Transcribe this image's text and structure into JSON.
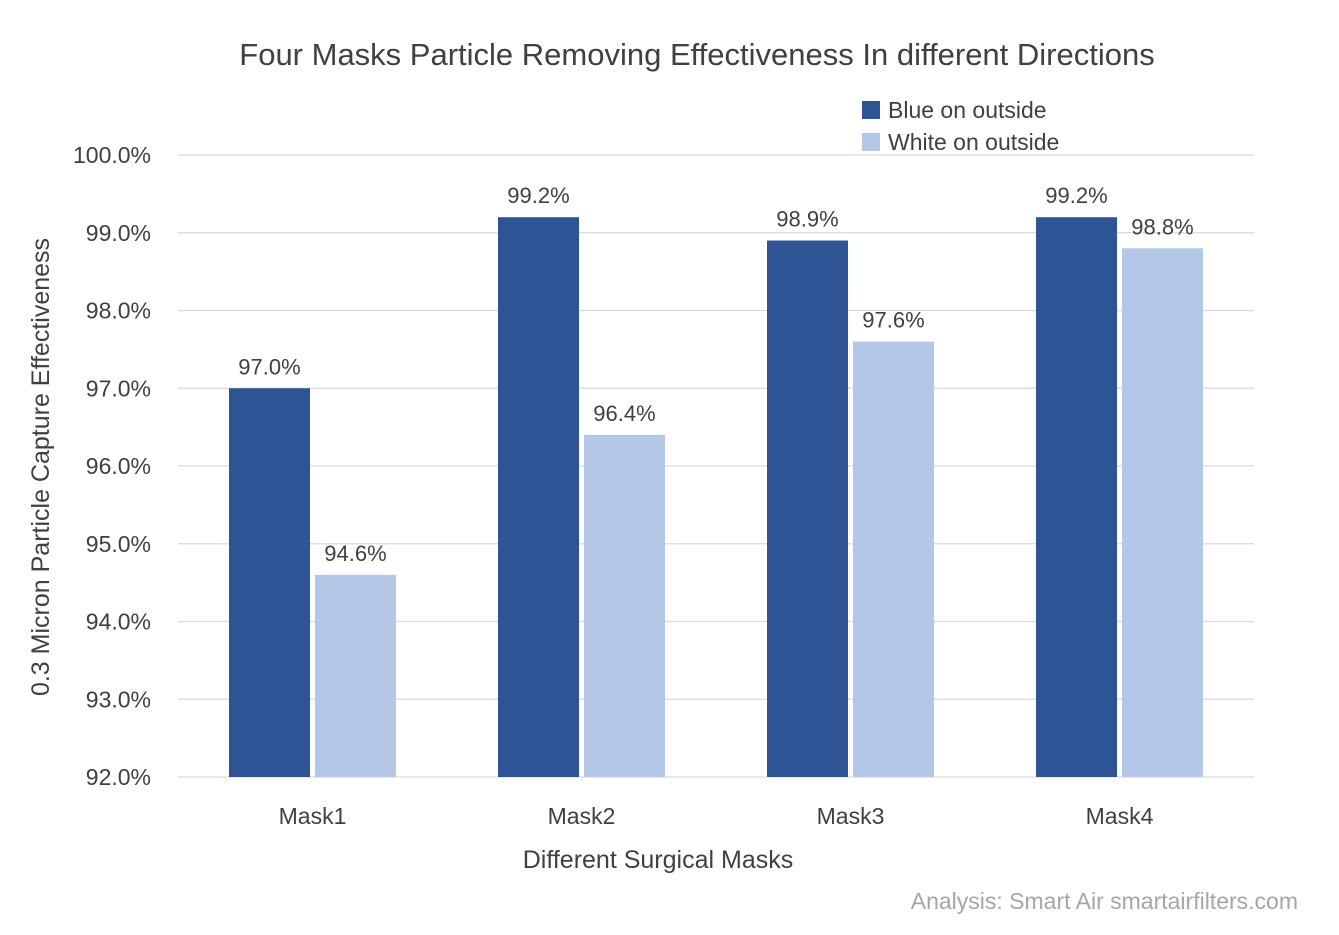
{
  "chart_data": {
    "type": "bar",
    "title": "Four Masks Particle Removing Effectiveness In different Directions",
    "xlabel": "Different Surgical Masks",
    "ylabel": "0.3 Micron Particle Capture Effectiveness",
    "categories": [
      "Mask1",
      "Mask2",
      "Mask3",
      "Mask4"
    ],
    "ylim": [
      92.0,
      100.0
    ],
    "yticks": [
      92.0,
      93.0,
      94.0,
      95.0,
      96.0,
      97.0,
      98.0,
      99.0,
      100.0
    ],
    "tick_labels": [
      "92.0%",
      "93.0%",
      "94.0%",
      "95.0%",
      "96.0%",
      "97.0%",
      "98.0%",
      "99.0%",
      "100.0%"
    ],
    "grid": true,
    "legend_position": "top-right",
    "series": [
      {
        "name": "Blue on outside",
        "color": "#2f5496",
        "values": [
          97.0,
          99.2,
          98.9,
          99.2
        ],
        "labels": [
          "97.0%",
          "99.2%",
          "98.9%",
          "99.2%"
        ]
      },
      {
        "name": "White on outside",
        "color": "#b4c7e7",
        "values": [
          94.6,
          96.4,
          97.6,
          98.8
        ],
        "labels": [
          "94.6%",
          "96.4%",
          "97.6%",
          "98.8%"
        ]
      }
    ]
  },
  "credit": "Analysis: Smart Air smartairfilters.com"
}
